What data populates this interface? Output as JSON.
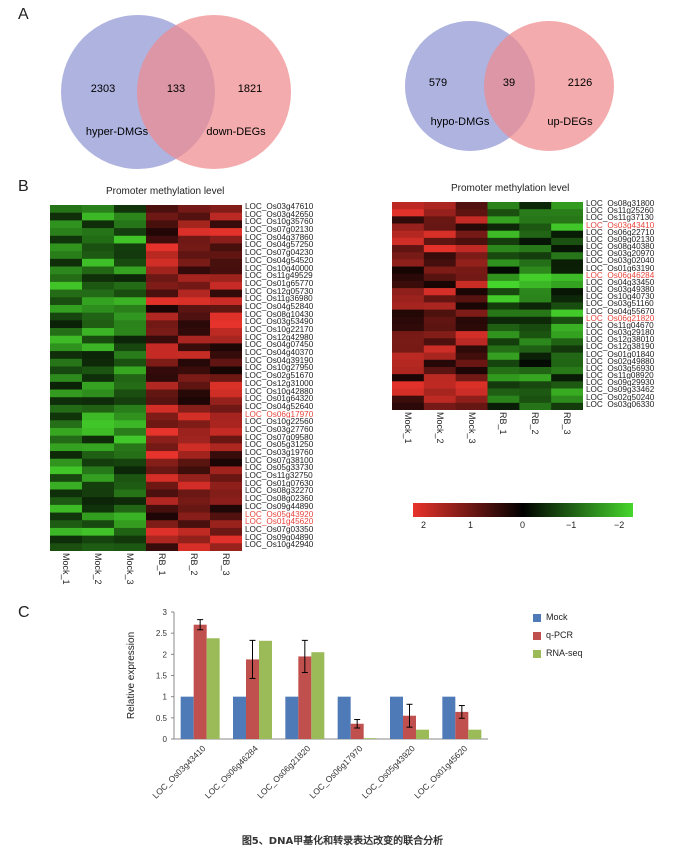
{
  "panels": [
    "A",
    "B",
    "C"
  ],
  "venn1": {
    "left": "hyper-DMGs",
    "right": "down-DEGs",
    "left_only": "2303",
    "overlap": "133",
    "right_only": "1821"
  },
  "venn2": {
    "left": "hypo-DMGs",
    "right": "up-DEGs",
    "left_only": "579",
    "overlap": "39",
    "right_only": "2126"
  },
  "colors": {
    "venn_left": "#9aa0d8",
    "venn_right": "#ef9ea0",
    "mock": "#4f7ab8",
    "qpcr": "#c0504d",
    "rnaseq": "#9bbb59",
    "heat_red": "#e8332b",
    "heat_green": "#46d62c",
    "highlight": "#e8453c"
  },
  "heat1": {
    "title": "Promoter methylation level",
    "columns": [
      "Mock_1",
      "Mock_2",
      "Mock_3",
      "RB_1",
      "RB_2",
      "RB_3"
    ],
    "highlighted": [
      "LOC_Os06g17970",
      "LOC_Os05g43920",
      "LOC_Os01g45620"
    ],
    "genes": [
      "LOC_Os03g47610",
      "LOC_Os03g42650",
      "LOC_Os10g35760",
      "LOC_Os07g02130",
      "LOC_Os04g37860",
      "LOC_Os04g57250",
      "LOC_Os07g04230",
      "LOC_Os04g54520",
      "LOC_Os10g40000",
      "LOC_Os11g49529",
      "LOC_Os01g65770",
      "LOC_Os12g05730",
      "LOC_Os11g36980",
      "LOC_Os04g52840",
      "LOC_Os08g10430",
      "LOC_Os03g53490",
      "LOC_Os10g22170",
      "LOC_Os12g42980",
      "LOC_Os04g07450",
      "LOC_Os04g40370",
      "LOC_Os04g39190",
      "LOC_Os10g27950",
      "LOC_Os02g51670",
      "LOC_Os12g31000",
      "LOC_Os10g42880",
      "LOC_Os01g64320",
      "LOC_Os04g52640",
      "LOC_Os06g17970",
      "LOC_Os10g22560",
      "LOC_Os03g27760",
      "LOC_Os07g09580",
      "LOC_Os05g31250",
      "LOC_Os03g19760",
      "LOC_Os07g38100",
      "LOC_Os05g33730",
      "LOC_Os11g32750",
      "LOC_Os01g07630",
      "LOC_Os08g32270",
      "LOC_Os08g02360",
      "LOC_Os09g44890",
      "LOC_Os05g43920",
      "LOC_Os01g45620",
      "LOC_Os07g03350",
      "LOC_Os09g04890",
      "LOC_Os10g42940"
    ]
  },
  "heat2": {
    "title": "Promoter methylation level",
    "columns": [
      "Mock_1",
      "Mock_2",
      "Mock_3",
      "RB_1",
      "RB_2",
      "RB_3"
    ],
    "highlighted": [
      "LOC_Os03g43410",
      "LOC_Os06g46284",
      "LOC_Os06g21820"
    ],
    "genes": [
      "LOC_Os08g31800",
      "LOC_Os11g25260",
      "LOC_Os11g37130",
      "LOC_Os03g43410",
      "LOC_Os06g22710",
      "LOC_Os09g02130",
      "LOC_Os08g40380",
      "LOC_Os03g20970",
      "LOC_Os03g02040",
      "LOC_Os01g63190",
      "LOC_Os06g46284",
      "LOC_Os04g33450",
      "LOC_Os03g49380",
      "LOC_Os10g40730",
      "LOC_Os03g51160",
      "LOC_Os04g55670",
      "LOC_Os06g21820",
      "LOC_Os11g04670",
      "LOC_Os03g29180",
      "LOC_Os12g38010",
      "LOC_Os12g38190",
      "LOC_Os01g01840",
      "LOC_Os02g49880",
      "LOC_Os03g56930",
      "LOC_Os11g08920",
      "LOC_Os09g29930",
      "LOC_Os09g33462",
      "LOC_Os02g50240",
      "LOC_Os03g06330"
    ]
  },
  "color_scale": {
    "ticks": [
      "2",
      "1",
      "0",
      "−1",
      "−2"
    ],
    "values": [
      2,
      1,
      0,
      -1,
      -2
    ]
  },
  "chart_data": {
    "type": "bar",
    "categories": [
      "LOC_Os03g43410",
      "LOC_Os06g46284",
      "LOC_Os06g21820",
      "LOC_Os06g17970",
      "LOC_Os05g43920",
      "LOC_Os01g45620"
    ],
    "series": [
      {
        "name": "Mock",
        "values": [
          1,
          1,
          1,
          1,
          1,
          1
        ]
      },
      {
        "name": "q-PCR",
        "values": [
          2.7,
          1.88,
          1.95,
          0.36,
          0.55,
          0.64
        ],
        "error": [
          0.12,
          0.45,
          0.38,
          0.1,
          0.27,
          0.15
        ]
      },
      {
        "name": "RNA-seq",
        "values": [
          2.38,
          2.32,
          2.05,
          0.02,
          0.22,
          0.22
        ]
      }
    ],
    "ylabel": "Relative expression",
    "ylim": [
      0,
      3
    ],
    "yticks": [
      "0",
      "0.5",
      "1",
      "1.5",
      "2",
      "2.5",
      "3"
    ],
    "legend_position": "right"
  },
  "caption": "图5、DNA甲基化和转录表达改变的联合分析"
}
